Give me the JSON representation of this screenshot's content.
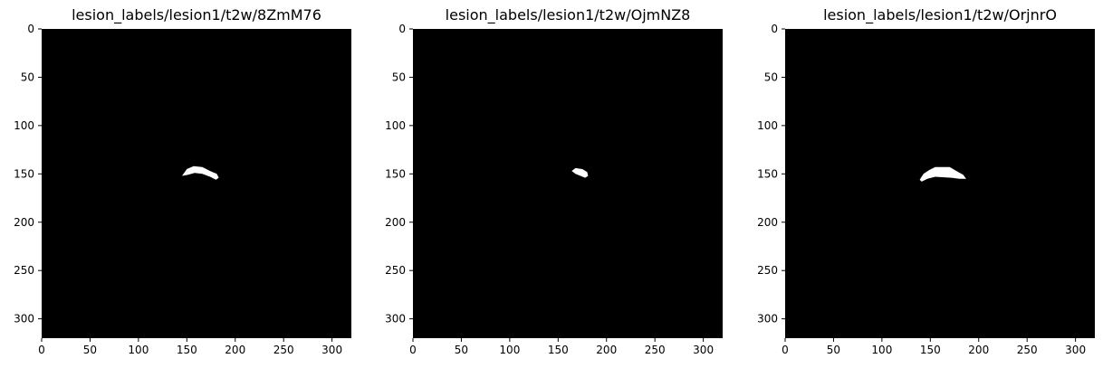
{
  "figure": {
    "background": "#ffffff",
    "image_color": "#000000",
    "lesion_color": "#ffffff"
  },
  "panels": [
    {
      "title": "lesion_labels/lesion1/t2w/8ZmM76",
      "image_extent": [
        0,
        320
      ],
      "x_ticks": [
        "0",
        "50",
        "100",
        "150",
        "200",
        "250",
        "300"
      ],
      "y_ticks": [
        "0",
        "50",
        "100",
        "150",
        "200",
        "250",
        "300"
      ],
      "lesion": [
        [
          145,
          152
        ],
        [
          150,
          145
        ],
        [
          157,
          142
        ],
        [
          166,
          143
        ],
        [
          174,
          147
        ],
        [
          181,
          150
        ],
        [
          183,
          154
        ],
        [
          180,
          156
        ],
        [
          174,
          153
        ],
        [
          166,
          150
        ],
        [
          158,
          149
        ],
        [
          151,
          151
        ]
      ]
    },
    {
      "title": "lesion_labels/lesion1/t2w/OjmNZ8",
      "image_extent": [
        0,
        320
      ],
      "x_ticks": [
        "0",
        "50",
        "100",
        "150",
        "200",
        "250",
        "300"
      ],
      "y_ticks": [
        "0",
        "50",
        "100",
        "150",
        "200",
        "250",
        "300"
      ],
      "lesion": [
        [
          164,
          147
        ],
        [
          168,
          144
        ],
        [
          175,
          145
        ],
        [
          180,
          148
        ],
        [
          181,
          152
        ],
        [
          178,
          154
        ],
        [
          173,
          152
        ],
        [
          168,
          150
        ]
      ]
    },
    {
      "title": "lesion_labels/lesion1/t2w/OrjnrO",
      "image_extent": [
        0,
        320
      ],
      "x_ticks": [
        "0",
        "50",
        "100",
        "150",
        "200",
        "250",
        "300"
      ],
      "y_ticks": [
        "0",
        "50",
        "100",
        "150",
        "200",
        "250",
        "300"
      ],
      "lesion": [
        [
          139,
          156
        ],
        [
          143,
          150
        ],
        [
          149,
          146
        ],
        [
          155,
          143
        ],
        [
          170,
          143
        ],
        [
          177,
          147
        ],
        [
          184,
          151
        ],
        [
          187,
          155
        ],
        [
          180,
          155
        ],
        [
          172,
          154
        ],
        [
          155,
          153
        ],
        [
          147,
          155
        ],
        [
          141,
          158
        ]
      ]
    }
  ]
}
